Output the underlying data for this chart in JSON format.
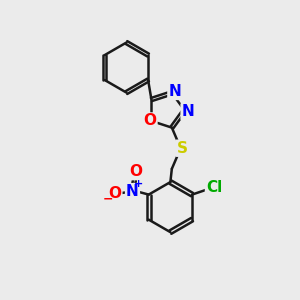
{
  "bg_color": "#ebebeb",
  "bond_color": "#1a1a1a",
  "atom_colors": {
    "O": "#ff0000",
    "N": "#0000ff",
    "S": "#cccc00",
    "Cl": "#00aa00",
    "C": "#1a1a1a"
  },
  "lw": 1.8,
  "dbo": 0.055,
  "fs": 11
}
